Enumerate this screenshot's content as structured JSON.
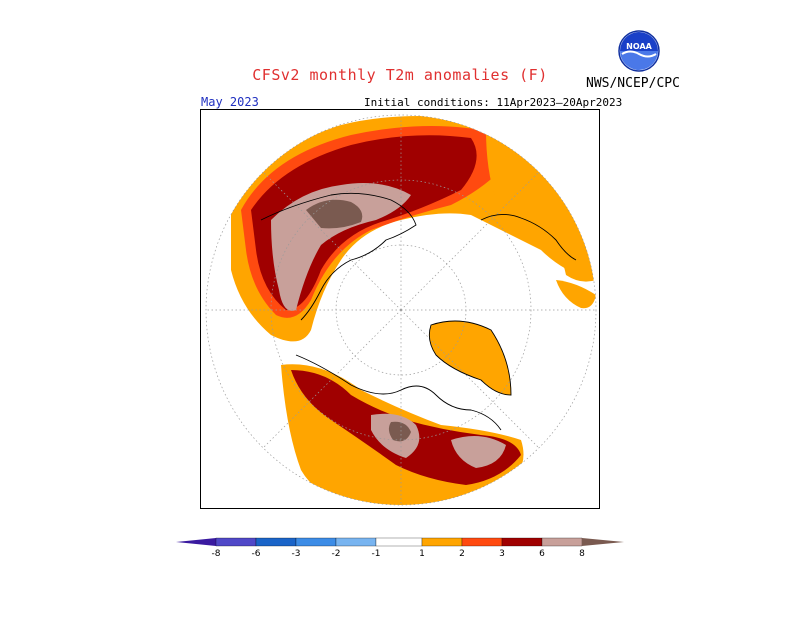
{
  "header": {
    "title": "CFSv2 monthly T2m anomalies (F)",
    "agency": "NWS/NCEP/CPC",
    "logo_text": "NOAA"
  },
  "map": {
    "month": "May 2023",
    "initial_conditions": "Initial conditions: 11Apr2023–20Apr2023",
    "projection": "north-polar-stereographic"
  },
  "legend": {
    "tick_labels": [
      "-8",
      "-6",
      "-3",
      "-2",
      "-1",
      "1",
      "2",
      "3",
      "6",
      "8"
    ],
    "colors": {
      "le_minus8": "#3a1aa0",
      "m8_m6": "#5048c8",
      "m6_m3": "#1a64c8",
      "m3_m2": "#3c8ce6",
      "m2_m1": "#78b4f0",
      "m1_1": "#ffffff",
      "1_2": "#ffa500",
      "2_3": "#ff4a10",
      "3_6": "#a00000",
      "6_8": "#c8a09a",
      "ge_8": "#7a5a50"
    }
  }
}
